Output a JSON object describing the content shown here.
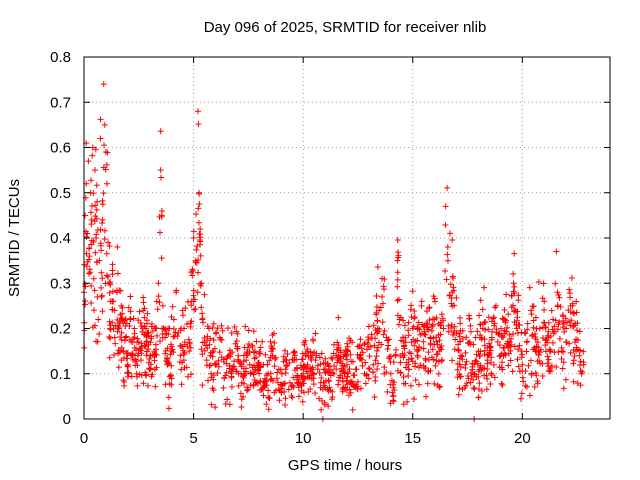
{
  "chart_data": {
    "type": "scatter",
    "title": "Day 096 of 2025, SRMTID for receiver nlib",
    "xlabel": "GPS time / hours",
    "ylabel": "SRMTID / TECUs",
    "xlim": [
      0,
      24
    ],
    "ylim": [
      0,
      0.8
    ],
    "xticks": [
      0,
      5,
      10,
      15,
      20
    ],
    "xtick_labels": [
      "0",
      "5",
      "10",
      "15",
      "20"
    ],
    "yticks": [
      0,
      0.1,
      0.2,
      0.3,
      0.4,
      0.5,
      0.6,
      0.7,
      0.8
    ],
    "ytick_labels": [
      "0",
      "0.1",
      "0.2",
      "0.3",
      "0.4",
      "0.5",
      "0.6",
      "0.7",
      "0.8"
    ],
    "grid": true,
    "marker": "+",
    "color": "#ff0000",
    "series": [
      {
        "name": "SRMTID",
        "x": [
          0.0,
          0.05,
          0.1,
          0.15,
          0.2,
          0.25,
          0.3,
          0.35,
          0.4,
          0.45,
          0.5,
          0.55,
          0.6,
          0.65,
          0.7,
          0.75,
          0.8,
          0.85,
          0.9,
          0.95,
          1.0,
          1.05,
          1.1,
          1.15,
          1.2,
          1.3,
          1.4,
          1.5,
          1.6,
          1.7,
          1.8,
          1.9,
          2.0,
          2.1,
          2.2,
          2.3,
          2.4,
          2.5,
          2.6,
          2.7,
          2.8,
          2.9,
          3.0,
          3.1,
          3.2,
          3.3,
          3.4,
          3.5,
          3.55,
          3.6,
          3.7,
          3.8,
          3.9,
          4.0,
          4.1,
          4.2,
          4.3,
          4.4,
          4.5,
          4.6,
          4.7,
          4.8,
          4.9,
          5.0,
          5.1,
          5.2,
          5.25,
          5.3,
          5.35,
          5.4,
          5.5,
          5.6,
          5.7,
          5.8,
          5.9,
          6.0,
          6.2,
          6.4,
          6.6,
          6.8,
          7.0,
          7.2,
          7.4,
          7.6,
          7.8,
          8.0,
          8.2,
          8.4,
          8.6,
          8.8,
          9.0,
          9.2,
          9.4,
          9.6,
          9.8,
          10.0,
          10.2,
          10.4,
          10.6,
          10.8,
          11.0,
          11.2,
          11.4,
          11.6,
          11.8,
          12.0,
          12.2,
          12.4,
          12.6,
          12.8,
          13.0,
          13.2,
          13.4,
          13.6,
          13.8,
          14.0,
          14.1,
          14.2,
          14.3,
          14.4,
          14.6,
          14.8,
          15.0,
          15.2,
          15.4,
          15.6,
          15.8,
          16.0,
          16.2,
          16.4,
          16.5,
          16.6,
          16.8,
          17.0,
          17.2,
          17.4,
          17.6,
          17.8,
          18.0,
          18.2,
          18.4,
          18.6,
          18.8,
          19.0,
          19.2,
          19.4,
          19.6,
          19.8,
          20.0,
          20.2,
          20.4,
          20.6,
          20.8,
          21.0,
          21.2,
          21.4,
          21.6,
          21.8,
          22.0,
          22.2,
          22.4,
          22.6,
          22.7,
          22.8
        ],
        "y": [
          0.28,
          0.45,
          0.52,
          0.41,
          0.57,
          0.36,
          0.5,
          0.44,
          0.6,
          0.31,
          0.55,
          0.4,
          0.48,
          0.22,
          0.35,
          0.62,
          0.27,
          0.44,
          0.74,
          0.65,
          0.59,
          0.52,
          0.39,
          0.3,
          0.26,
          0.32,
          0.24,
          0.28,
          0.2,
          0.25,
          0.15,
          0.18,
          0.12,
          0.22,
          0.14,
          0.2,
          0.1,
          0.17,
          0.13,
          0.24,
          0.16,
          0.19,
          0.11,
          0.21,
          0.15,
          0.2,
          0.3,
          0.55,
          0.45,
          0.25,
          0.18,
          0.12,
          0.2,
          0.16,
          0.22,
          0.28,
          0.19,
          0.14,
          0.24,
          0.17,
          0.21,
          0.15,
          0.26,
          0.4,
          0.35,
          0.68,
          0.5,
          0.42,
          0.3,
          0.22,
          0.17,
          0.13,
          0.2,
          0.1,
          0.15,
          0.12,
          0.18,
          0.09,
          0.14,
          0.11,
          0.16,
          0.08,
          0.13,
          0.1,
          0.15,
          0.12,
          0.07,
          0.1,
          0.14,
          0.09,
          0.06,
          0.11,
          0.08,
          0.13,
          0.07,
          0.1,
          0.12,
          0.09,
          0.14,
          0.08,
          0.11,
          0.07,
          0.1,
          0.13,
          0.09,
          0.12,
          0.08,
          0.11,
          0.14,
          0.1,
          0.16,
          0.12,
          0.2,
          0.27,
          0.18,
          0.1,
          0.05,
          0.14,
          0.35,
          0.22,
          0.16,
          0.12,
          0.2,
          0.15,
          0.25,
          0.13,
          0.18,
          0.22,
          0.15,
          0.2,
          0.47,
          0.38,
          0.28,
          0.19,
          0.14,
          0.12,
          0.17,
          0.1,
          0.15,
          0.2,
          0.13,
          0.18,
          0.25,
          0.14,
          0.22,
          0.16,
          0.3,
          0.19,
          0.12,
          0.17,
          0.24,
          0.15,
          0.2,
          0.26,
          0.18,
          0.22,
          0.28,
          0.15,
          0.2,
          0.25,
          0.17,
          0.14,
          0.1,
          0.12
        ],
        "cloud_count": 1500
      }
    ],
    "points_on_axis": [
      {
        "x": 10.9,
        "y": 0.0
      },
      {
        "x": 17.8,
        "y": 0.0
      }
    ]
  }
}
